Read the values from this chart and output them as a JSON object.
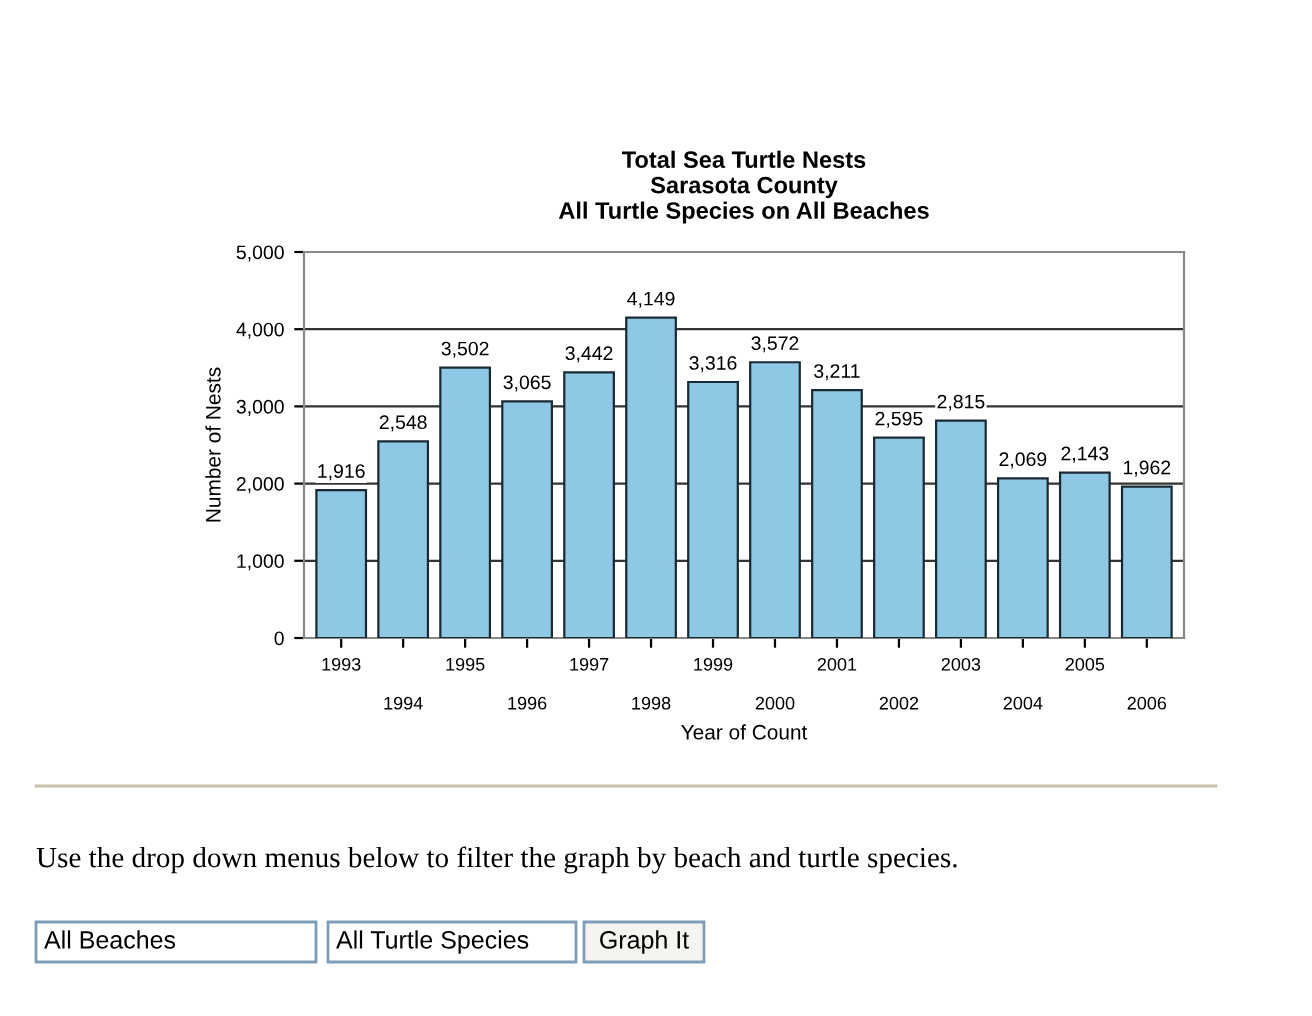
{
  "chart_data": {
    "type": "bar",
    "title": "Total Sea Turtle Nests\nSarasota County\nAll Turtle Species on All Beaches",
    "xlabel": "Year of Count",
    "ylabel": "Number of Nests",
    "categories": [
      "1993",
      "1994",
      "1995",
      "1996",
      "1997",
      "1998",
      "1999",
      "2000",
      "2001",
      "2002",
      "2003",
      "2004",
      "2005",
      "2006"
    ],
    "values": [
      1916,
      2548,
      3502,
      3065,
      3442,
      4149,
      3316,
      3572,
      3211,
      2595,
      2815,
      2069,
      2143,
      1962
    ],
    "value_labels": [
      "1,916",
      "2,548",
      "3,502",
      "3,065",
      "3,442",
      "4,149",
      "3,316",
      "3,572",
      "3,211",
      "2,595",
      "2,815",
      "2,069",
      "2,143",
      "1,962"
    ],
    "color": "#8ec8e4",
    "ylim": [
      0,
      5000
    ],
    "yticks": [
      {
        "value": 0,
        "label": "0"
      },
      {
        "value": 1000,
        "label": "1,000"
      },
      {
        "value": 2000,
        "label": "2,000"
      },
      {
        "value": 3000,
        "label": "3,000"
      },
      {
        "value": 4000,
        "label": "4,000"
      },
      {
        "value": 5000,
        "label": "5,000"
      }
    ],
    "grid": "y",
    "annotations": [
      "Use the drop down menus below to filter the graph by beach and turtle species.",
      "All Beaches",
      "All Turtle Species",
      "Graph It"
    ]
  }
}
